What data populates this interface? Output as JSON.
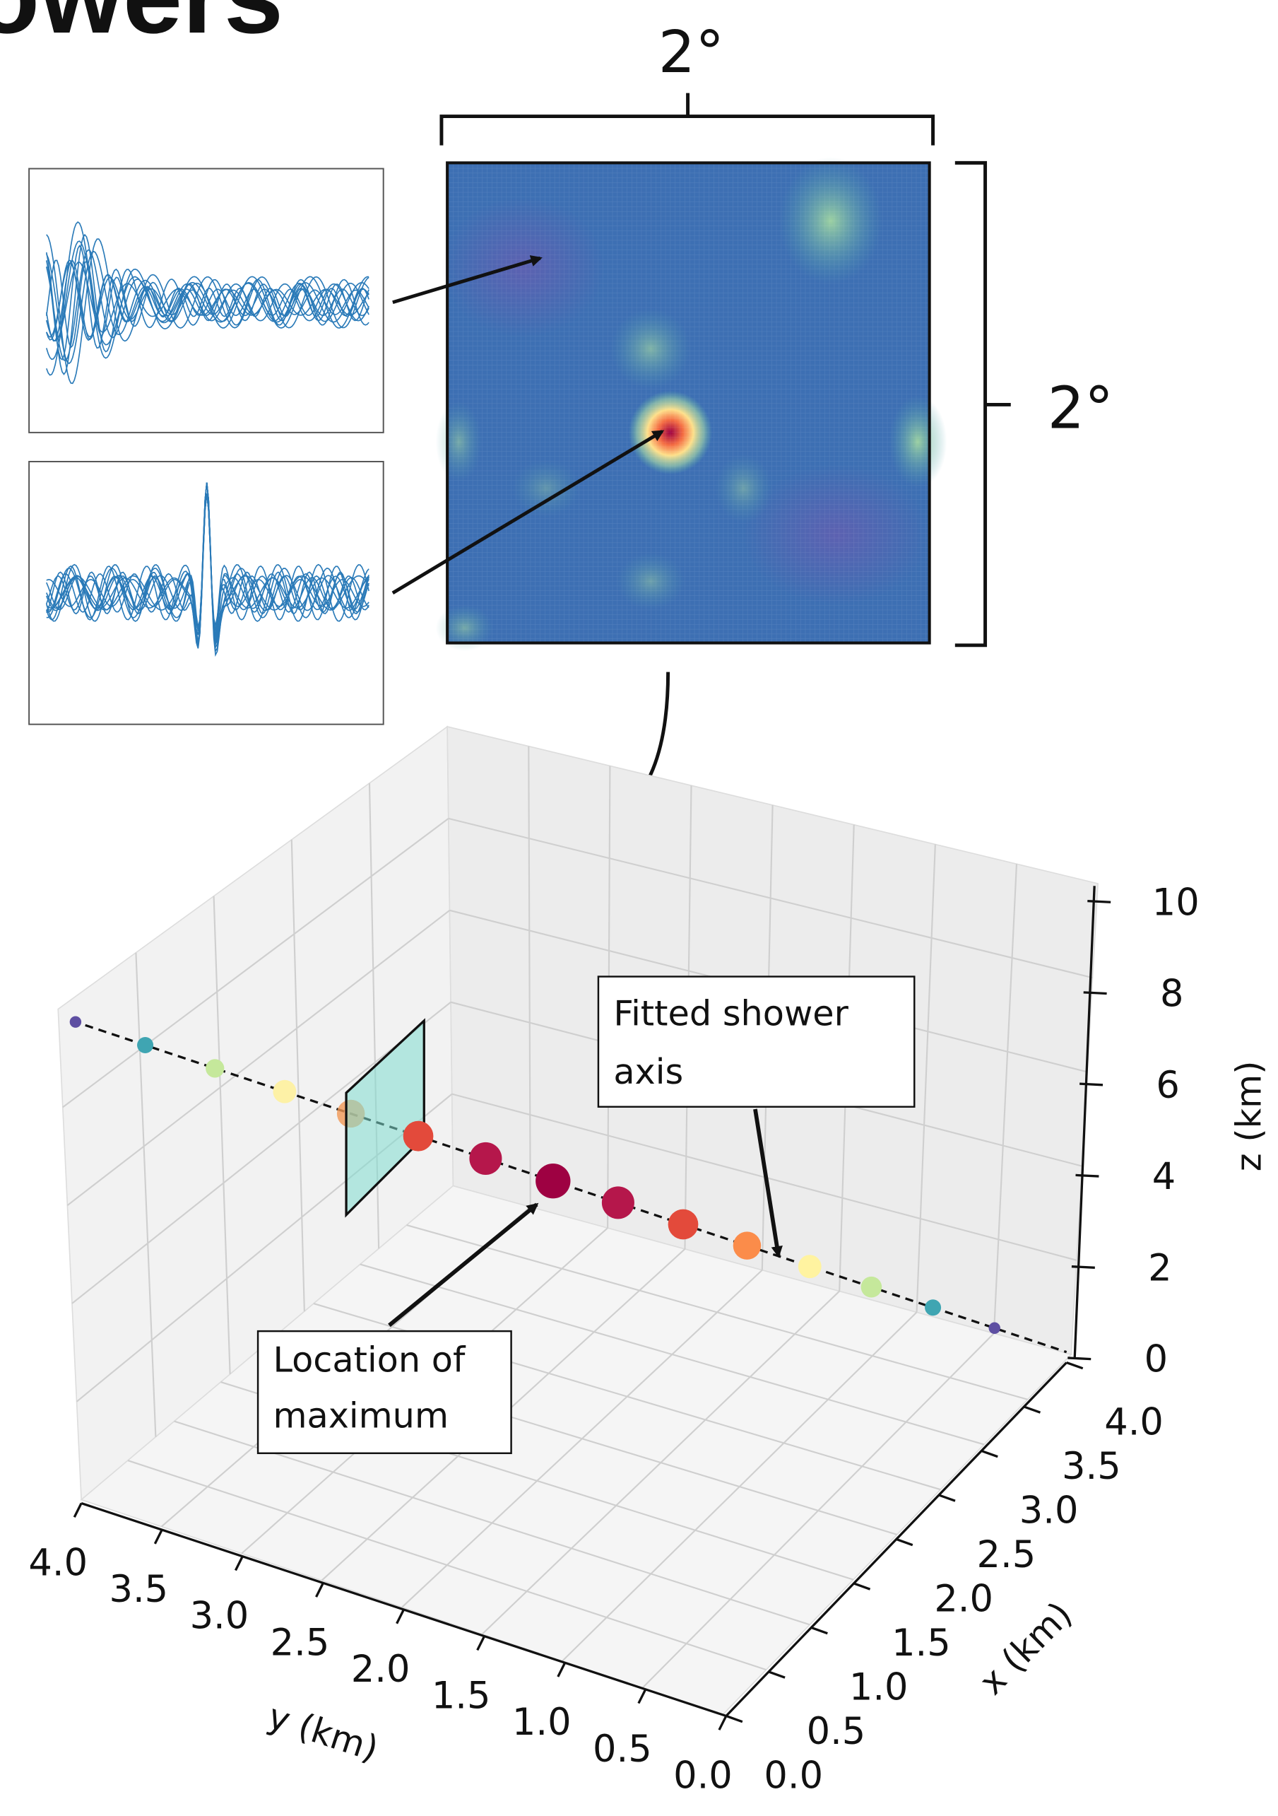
{
  "title": "owers",
  "heatmap": {
    "top_label": "2°",
    "right_label": "2°"
  },
  "plot3d": {
    "annotations": [
      {
        "lines": [
          "Fitted shower",
          "axis"
        ]
      },
      {
        "lines": [
          "Location of",
          "maximum"
        ]
      }
    ],
    "z_axis": {
      "label": "z (km)",
      "ticks": [
        0,
        2,
        4,
        6,
        8,
        10
      ]
    },
    "x_axis": {
      "label": "x (km)",
      "ticks": [
        {
          "value": 0,
          "label": "0.0"
        },
        {
          "value": 0.5,
          "label": "0.5"
        },
        {
          "value": 1,
          "label": "1.0"
        },
        {
          "value": 1.5,
          "label": "1.5"
        },
        {
          "value": 2,
          "label": "2.0"
        },
        {
          "value": 2.5,
          "label": "2.5"
        },
        {
          "value": 3,
          "label": "3.0"
        },
        {
          "value": 3.5,
          "label": "3.5"
        },
        {
          "value": 4,
          "label": "4.0"
        }
      ]
    },
    "y_axis": {
      "label": "y (km)",
      "ticks": [
        {
          "value": 4,
          "label": "4.0"
        },
        {
          "value": 3.5,
          "label": "3.5"
        },
        {
          "value": 3,
          "label": "3.0"
        },
        {
          "value": 2.5,
          "label": "2.5"
        },
        {
          "value": 2,
          "label": "2.0"
        },
        {
          "value": 1.5,
          "label": "1.5"
        },
        {
          "value": 1,
          "label": "1.0"
        },
        {
          "value": 0.5,
          "label": "0.5"
        },
        {
          "value": 0,
          "label": "0.0"
        }
      ]
    }
  }
}
